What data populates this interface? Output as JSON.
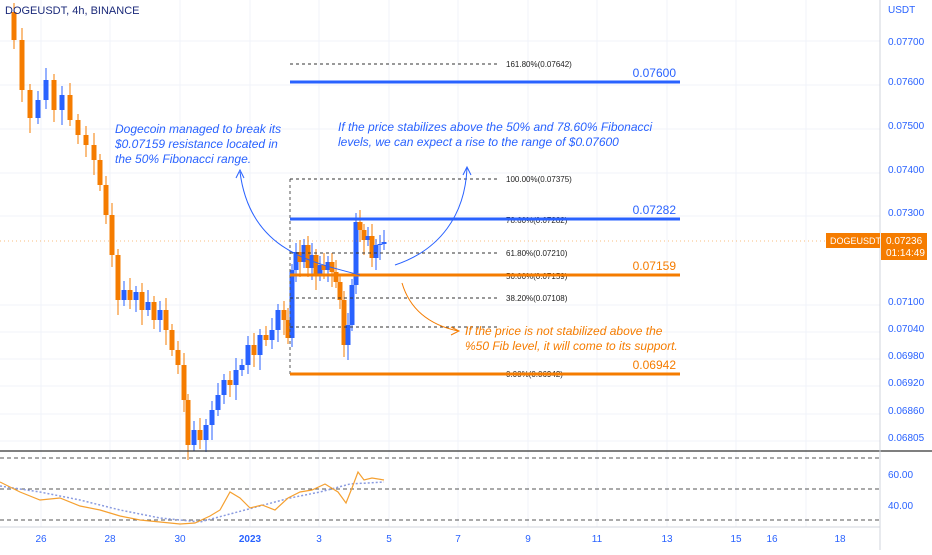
{
  "symbol_title": "DOGEUSDT, 4h, BINANCE",
  "currency": "USDT",
  "colors": {
    "up": "#2962ff",
    "down": "#f57c00",
    "blue_text": "#2962ff",
    "orange_text": "#f57c00",
    "axis_text": "#2962ff",
    "grid": "#f0f3fa"
  },
  "price_axis": {
    "labels": [
      "0.07700",
      "0.07600",
      "0.07500",
      "0.07400",
      "0.07300",
      "0.07100",
      "0.07040",
      "0.06980",
      "0.06920",
      "0.06860",
      "0.06805"
    ],
    "current_symbol": "DOGEUSDT",
    "current_price": "0.07236",
    "countdown": "01:14:49"
  },
  "time_axis": {
    "labels": [
      "26",
      "28",
      "30",
      "2023",
      "3",
      "5",
      "7",
      "9",
      "11",
      "13",
      "15",
      "16",
      "18"
    ]
  },
  "levels": {
    "key": [
      {
        "id": "target",
        "label": "0.07600",
        "color": "blue"
      },
      {
        "id": "fib786",
        "label": "0.07282",
        "color": "blue"
      },
      {
        "id": "fib50",
        "label": "0.07159",
        "color": "orange"
      },
      {
        "id": "fib0",
        "label": "0.06942",
        "color": "orange"
      }
    ],
    "fib": [
      {
        "id": "f1618",
        "label": "161.80%(0.07642)"
      },
      {
        "id": "f100",
        "label": "100.00%(0.07375)"
      },
      {
        "id": "f786",
        "label": "78.60%(0.07282)"
      },
      {
        "id": "f618",
        "label": "61.80%(0.07210)"
      },
      {
        "id": "f50",
        "label": "50.00%(0.07159)"
      },
      {
        "id": "f382",
        "label": "38.20%(0.07108)"
      },
      {
        "id": "f0",
        "label": "0.00%(0.06942)"
      }
    ]
  },
  "annotations": {
    "left": [
      "Dogecoin managed to break its",
      "$0.07159 resistance located in",
      "the 50% Fibonacci range."
    ],
    "right": [
      "If the price stabilizes above the 50% and 78.60% Fibonacci",
      "levels, we can expect a rise to the range of $0.07600"
    ],
    "bottom": [
      "If the price is not stabilized above the",
      "%50 Fib level, it will come to its support."
    ]
  },
  "oscillator": {
    "labels": [
      "60.00",
      "40.00"
    ]
  },
  "chart_data": {
    "type": "candlestick",
    "title": "DOGEUSDT, 4h, BINANCE",
    "y_unit": "USDT",
    "fib_levels": [
      {
        "level": "161.80%",
        "price": 0.07642
      },
      {
        "level": "100.00%",
        "price": 0.07375
      },
      {
        "level": "78.60%",
        "price": 0.07282
      },
      {
        "level": "61.80%",
        "price": 0.0721
      },
      {
        "level": "50.00%",
        "price": 0.07159
      },
      {
        "level": "38.20%",
        "price": 0.07108
      },
      {
        "level": "0.00%",
        "price": 0.06942
      }
    ],
    "horizontal_levels": [
      0.076,
      0.07282,
      0.07159,
      0.06942
    ],
    "current_price": 0.07236
  }
}
